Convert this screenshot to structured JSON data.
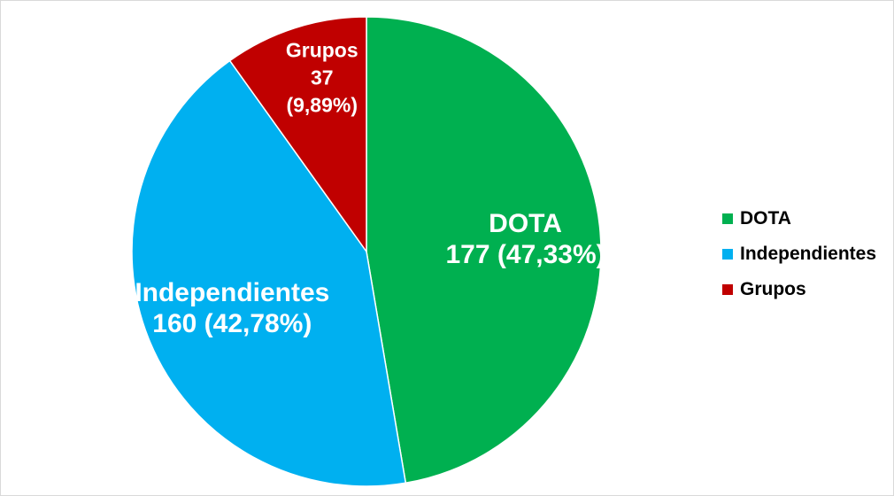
{
  "chart_data": {
    "type": "pie",
    "title": "",
    "slices": [
      {
        "label": "DOTA",
        "value": 177,
        "percent": "47,33%",
        "color": "#00b050"
      },
      {
        "label": "Independientes",
        "value": 160,
        "percent": "42,78%",
        "color": "#00b0f0"
      },
      {
        "label": "Grupos",
        "value": 37,
        "percent": "9,89%",
        "color": "#c00000"
      }
    ],
    "data_labels": [
      {
        "lines": [
          "DOTA",
          "177  (47,33%)"
        ]
      },
      {
        "lines": [
          "Independientes",
          "160  (42,78%)"
        ]
      },
      {
        "lines": [
          "Grupos",
          "37",
          "(9,89%)"
        ]
      }
    ],
    "legend": {
      "position": "right",
      "items": [
        "DOTA",
        "Independientes",
        "Grupos"
      ]
    }
  }
}
